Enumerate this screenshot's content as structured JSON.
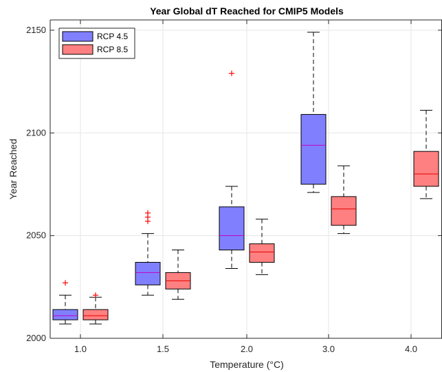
{
  "chart_data": {
    "type": "box",
    "title": "Year Global dT Reached for CMIP5 Models",
    "xlabel": "Temperature (°C)",
    "ylabel": "Year Reached",
    "ylim": [
      2000,
      2155
    ],
    "yticks": [
      2000,
      2050,
      2100,
      2150
    ],
    "categories": [
      "1.0",
      "1.5",
      "2.0",
      "3.0",
      "4.0"
    ],
    "grid": true,
    "legend_position": "top-left",
    "series": [
      {
        "name": "RCP 4.5",
        "color": "#8080ff",
        "median_color": "#c000c0",
        "boxes": [
          {
            "category": "1.0",
            "whisker_low": 2007,
            "q1": 2009,
            "median": 2011,
            "q3": 2014,
            "whisker_high": 2021,
            "outliers": [
              2027
            ]
          },
          {
            "category": "1.5",
            "whisker_low": 2021,
            "q1": 2026,
            "median": 2032,
            "q3": 2037,
            "whisker_high": 2051,
            "outliers": [
              2057,
              2059,
              2061
            ]
          },
          {
            "category": "2.0",
            "whisker_low": 2034,
            "q1": 2043,
            "median": 2050,
            "q3": 2064,
            "whisker_high": 2074,
            "outliers": [
              2129
            ]
          },
          {
            "category": "3.0",
            "whisker_low": 2071,
            "q1": 2075,
            "median": 2094,
            "q3": 2109,
            "whisker_high": 2149,
            "outliers": []
          }
        ]
      },
      {
        "name": "RCP 8.5",
        "color": "#ff8080",
        "median_color": "#e00000",
        "boxes": [
          {
            "category": "1.0",
            "whisker_low": 2007,
            "q1": 2009,
            "median": 2011,
            "q3": 2014,
            "whisker_high": 2020,
            "outliers": [
              2021
            ]
          },
          {
            "category": "1.5",
            "whisker_low": 2019,
            "q1": 2024,
            "median": 2028,
            "q3": 2032,
            "whisker_high": 2043,
            "outliers": []
          },
          {
            "category": "2.0",
            "whisker_low": 2031,
            "q1": 2037,
            "median": 2042,
            "q3": 2046,
            "whisker_high": 2058,
            "outliers": []
          },
          {
            "category": "3.0",
            "whisker_low": 2051,
            "q1": 2055,
            "median": 2063,
            "q3": 2069,
            "whisker_high": 2084,
            "outliers": []
          },
          {
            "category": "4.0",
            "whisker_low": 2068,
            "q1": 2074,
            "median": 2080,
            "q3": 2091,
            "whisker_high": 2111,
            "outliers": []
          }
        ]
      }
    ]
  }
}
